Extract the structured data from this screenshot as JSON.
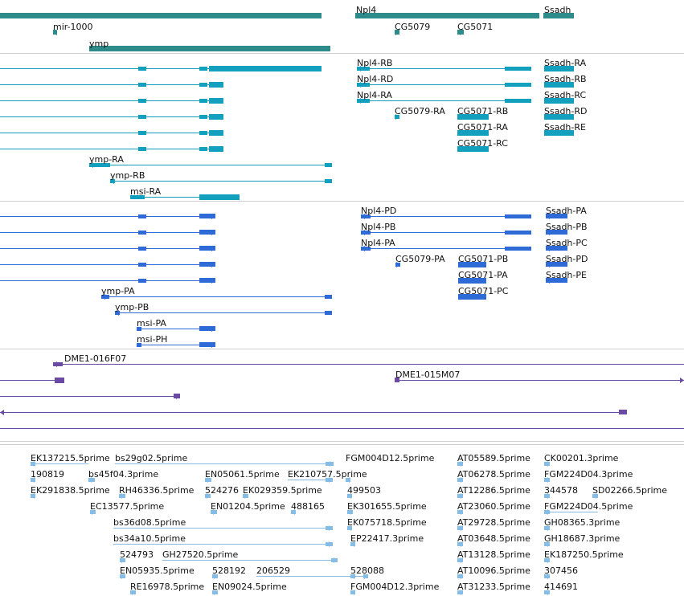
{
  "colors": {
    "gene": "#2e8b8b",
    "rna": "#13a0bf",
    "protein": "#2f6bd6",
    "clone": "#6a4aa3",
    "est": "#86bde6",
    "separator": "#cfcfcf",
    "label": "#111111"
  },
  "tracks": [
    {
      "id": "gene",
      "color_key": "gene",
      "features": [
        {
          "label": "",
          "strand": "+"
        },
        {
          "label": "mir-1000",
          "strand": "-"
        },
        {
          "label": "ymp",
          "strand": "-"
        },
        {
          "label": "Npl4",
          "strand": "-"
        },
        {
          "label": "Ssadh",
          "strand": "-"
        },
        {
          "label": "CG5079",
          "strand": "+"
        },
        {
          "label": "CG5071",
          "strand": "+"
        }
      ]
    },
    {
      "id": "rna",
      "color_key": "rna",
      "features": [
        {
          "label": "",
          "strand": "+"
        },
        {
          "label": "",
          "strand": "+"
        },
        {
          "label": "",
          "strand": "+"
        },
        {
          "label": "",
          "strand": "+"
        },
        {
          "label": "",
          "strand": "+"
        },
        {
          "label": "",
          "strand": "+"
        },
        {
          "label": "ymp-RA",
          "strand": "-"
        },
        {
          "label": "ymp-RB",
          "strand": "-"
        },
        {
          "label": "msi-RA",
          "strand": "+"
        },
        {
          "label": "Npl4-RB",
          "strand": "-"
        },
        {
          "label": "Npl4-RD",
          "strand": "-"
        },
        {
          "label": "Npl4-RA",
          "strand": "-"
        },
        {
          "label": "CG5079-RA",
          "strand": "+"
        },
        {
          "label": "CG5071-RB",
          "strand": "+"
        },
        {
          "label": "CG5071-RA",
          "strand": "+"
        },
        {
          "label": "CG5071-RC",
          "strand": "+"
        },
        {
          "label": "Ssadh-RA",
          "strand": "-"
        },
        {
          "label": "Ssadh-RB",
          "strand": "-"
        },
        {
          "label": "Ssadh-RC",
          "strand": "-"
        },
        {
          "label": "Ssadh-RD",
          "strand": "-"
        },
        {
          "label": "Ssadh-RE",
          "strand": "-"
        }
      ]
    },
    {
      "id": "protein",
      "color_key": "protein",
      "features": [
        {
          "label": "",
          "strand": "+"
        },
        {
          "label": "",
          "strand": "+"
        },
        {
          "label": "",
          "strand": "+"
        },
        {
          "label": "",
          "strand": "+"
        },
        {
          "label": "",
          "strand": "+"
        },
        {
          "label": "ymp-PA",
          "strand": "-"
        },
        {
          "label": "ymp-PB",
          "strand": "-"
        },
        {
          "label": "msi-PA",
          "strand": "+"
        },
        {
          "label": "msi-PH",
          "strand": "+"
        },
        {
          "label": "Npl4-PD",
          "strand": "-"
        },
        {
          "label": "Npl4-PB",
          "strand": "-"
        },
        {
          "label": "Npl4-PA",
          "strand": "-"
        },
        {
          "label": "CG5079-PA",
          "strand": "+"
        },
        {
          "label": "CG5071-PB",
          "strand": "+"
        },
        {
          "label": "CG5071-PA",
          "strand": "+"
        },
        {
          "label": "CG5071-PC",
          "strand": "+"
        },
        {
          "label": "Ssadh-PA",
          "strand": "-"
        },
        {
          "label": "Ssadh-PB",
          "strand": "-"
        },
        {
          "label": "Ssadh-PC",
          "strand": "-"
        },
        {
          "label": "Ssadh-PD",
          "strand": "-"
        },
        {
          "label": "Ssadh-PE",
          "strand": "-"
        }
      ]
    },
    {
      "id": "clone",
      "color_key": "clone",
      "features": [
        {
          "label": "DME1-016F07",
          "strand": "-"
        },
        {
          "label": "",
          "strand": "+"
        },
        {
          "label": "DME1-015M07",
          "strand": "+"
        },
        {
          "label": "",
          "strand": "+"
        },
        {
          "label": "",
          "strand": "-"
        },
        {
          "label": "",
          "strand": ""
        }
      ]
    },
    {
      "id": "est",
      "color_key": "est",
      "features": [
        {
          "label": "EK137215.5prime",
          "strand": "-"
        },
        {
          "label": "bs29g02.5prime",
          "strand": "+"
        },
        {
          "label": "FGM004D12.5prime",
          "strand": "-"
        },
        {
          "label": "AT05589.5prime",
          "strand": "-"
        },
        {
          "label": "CK00201.3prime",
          "strand": "-"
        },
        {
          "label": "190819",
          "strand": "-"
        },
        {
          "label": "bs45f04.3prime",
          "strand": "+"
        },
        {
          "label": "EN05061.5prime",
          "strand": "+"
        },
        {
          "label": "EK210757.5prime",
          "strand": "+"
        },
        {
          "label": "AT06278.5prime",
          "strand": "-"
        },
        {
          "label": "FGM224D04.3prime",
          "strand": "-"
        },
        {
          "label": "EK291838.5prime",
          "strand": "-"
        },
        {
          "label": "RH46336.5prime",
          "strand": "+"
        },
        {
          "label": "524276",
          "strand": "+"
        },
        {
          "label": "EK029359.5prime",
          "strand": "+"
        },
        {
          "label": "499503",
          "strand": "-"
        },
        {
          "label": "AT12286.5prime",
          "strand": "-"
        },
        {
          "label": "344578",
          "strand": "-"
        },
        {
          "label": "SD02266.5prime",
          "strand": "-"
        },
        {
          "label": "EC13577.5prime",
          "strand": "+"
        },
        {
          "label": "EN01204.5prime",
          "strand": "+"
        },
        {
          "label": "488165",
          "strand": "-"
        },
        {
          "label": "EK301655.5prime",
          "strand": "-"
        },
        {
          "label": "AT23060.5prime",
          "strand": "-"
        },
        {
          "label": "FGM224D04.5prime",
          "strand": "-"
        },
        {
          "label": "bs36d08.5prime",
          "strand": "+"
        },
        {
          "label": "EK075718.5prime",
          "strand": "-"
        },
        {
          "label": "AT29728.5prime",
          "strand": "-"
        },
        {
          "label": "GH08365.3prime",
          "strand": "-"
        },
        {
          "label": "bs34a10.5prime",
          "strand": "+"
        },
        {
          "label": "EP22417.3prime",
          "strand": "-"
        },
        {
          "label": "AT03648.5prime",
          "strand": "-"
        },
        {
          "label": "GH18687.3prime",
          "strand": "-"
        },
        {
          "label": "524793",
          "strand": "+"
        },
        {
          "label": "GH27520.5prime",
          "strand": "+"
        },
        {
          "label": "AT13128.5prime",
          "strand": "-"
        },
        {
          "label": "EK187250.5prime",
          "strand": "-"
        },
        {
          "label": "EN05935.5prime",
          "strand": "+"
        },
        {
          "label": "528192",
          "strand": "+"
        },
        {
          "label": "206529",
          "strand": "+"
        },
        {
          "label": "528088",
          "strand": "-"
        },
        {
          "label": "AT10096.5prime",
          "strand": "-"
        },
        {
          "label": "307456",
          "strand": "-"
        },
        {
          "label": "RE16978.5prime",
          "strand": "+"
        },
        {
          "label": "EN09024.5prime",
          "strand": "+"
        },
        {
          "label": "FGM004D12.3prime",
          "strand": "-"
        },
        {
          "label": "AT31233.5prime",
          "strand": "-"
        },
        {
          "label": "414691",
          "strand": "-"
        }
      ]
    }
  ]
}
